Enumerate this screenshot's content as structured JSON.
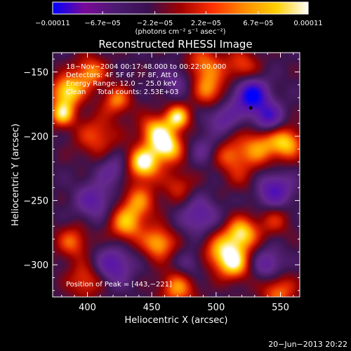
{
  "chart_data": {
    "type": "heatmap",
    "title": "Reconstructed RHESSI Image",
    "xlabel": "Heliocentric X (arcsec)",
    "ylabel": "Heliocentric Y (arcsec)",
    "xlim": [
      373,
      565
    ],
    "ylim": [
      -325,
      -135
    ],
    "x_ticks": [
      400,
      450,
      500,
      550
    ],
    "y_ticks": [
      -150,
      -200,
      -250,
      -300
    ],
    "x_tick_labels": [
      "400",
      "450",
      "500",
      "550"
    ],
    "y_tick_labels": [
      "−150",
      "−200",
      "−250",
      "−300"
    ],
    "colorbar": {
      "min": -0.00011,
      "max": 0.00011,
      "tick_values": [
        -0.00011,
        -6.7e-05,
        -2.2e-05,
        2.2e-05,
        6.7e-05,
        0.00011
      ],
      "tick_labels": [
        "−0.00011",
        "−6.7e−05",
        "−2.2e−05",
        "2.2e−05",
        "6.7e−05",
        "0.00011"
      ],
      "unit_label": "(photons cm⁻² s⁻¹ asec⁻²)",
      "colors": [
        "#0000ff",
        "#7a0a98",
        "#4a1a70",
        "#3a1050",
        "#a00000",
        "#ff3000",
        "#ff8c00",
        "#ffd000",
        "#ffffff"
      ]
    },
    "annotations": [
      "18−Nov−2004 00:17:48.000 to 00:22:00.000",
      "Detectors: 4F 5F 6F 7F 8F, Att 0",
      "Energy Range: 12.0 − 25.0 keV",
      "Clean     Total counts: 2.53E+03"
    ],
    "peak_label": "Position of Peak = [443,−221]",
    "peak": {
      "x": 443,
      "y": -221
    },
    "marker": {
      "x": 527,
      "y": -178
    },
    "blobs": [
      {
        "x": 443,
        "y": -221,
        "a": 1.0,
        "s": 9
      },
      {
        "x": 462,
        "y": -208,
        "a": 0.9,
        "s": 9
      },
      {
        "x": 470,
        "y": -185,
        "a": 0.85,
        "s": 7
      },
      {
        "x": 452,
        "y": -195,
        "a": 0.7,
        "s": 9
      },
      {
        "x": 384,
        "y": -165,
        "a": 0.9,
        "s": 9
      },
      {
        "x": 380,
        "y": -183,
        "a": 0.75,
        "s": 7
      },
      {
        "x": 402,
        "y": -150,
        "a": 0.65,
        "s": 9
      },
      {
        "x": 423,
        "y": -172,
        "a": 0.6,
        "s": 8
      },
      {
        "x": 407,
        "y": -200,
        "a": 0.5,
        "s": 12
      },
      {
        "x": 490,
        "y": -145,
        "a": 0.6,
        "s": 11
      },
      {
        "x": 520,
        "y": -145,
        "a": 0.5,
        "s": 9
      },
      {
        "x": 495,
        "y": -165,
        "a": 0.55,
        "s": 9
      },
      {
        "x": 533,
        "y": -208,
        "a": 0.65,
        "s": 11
      },
      {
        "x": 555,
        "y": -205,
        "a": 0.75,
        "s": 9
      },
      {
        "x": 510,
        "y": -215,
        "a": 0.5,
        "s": 9
      },
      {
        "x": 440,
        "y": -250,
        "a": 0.55,
        "s": 10
      },
      {
        "x": 470,
        "y": -238,
        "a": 0.4,
        "s": 9
      },
      {
        "x": 430,
        "y": -268,
        "a": 0.7,
        "s": 10
      },
      {
        "x": 455,
        "y": -283,
        "a": 0.75,
        "s": 9
      },
      {
        "x": 388,
        "y": -282,
        "a": 0.55,
        "s": 9
      },
      {
        "x": 398,
        "y": -312,
        "a": 0.5,
        "s": 10
      },
      {
        "x": 470,
        "y": -318,
        "a": 0.65,
        "s": 10
      },
      {
        "x": 505,
        "y": -290,
        "a": 0.75,
        "s": 11
      },
      {
        "x": 520,
        "y": -275,
        "a": 0.8,
        "s": 9
      },
      {
        "x": 515,
        "y": -300,
        "a": 0.6,
        "s": 9
      },
      {
        "x": 545,
        "y": -265,
        "a": 0.4,
        "s": 9
      },
      {
        "x": 548,
        "y": -320,
        "a": 0.6,
        "s": 10
      },
      {
        "x": 520,
        "y": -232,
        "a": 0.25,
        "s": 9
      },
      {
        "x": 527,
        "y": -168,
        "a": -1.0,
        "s": 9
      },
      {
        "x": 540,
        "y": -185,
        "a": -0.7,
        "s": 8
      },
      {
        "x": 505,
        "y": -185,
        "a": -0.45,
        "s": 9
      },
      {
        "x": 420,
        "y": -300,
        "a": -0.6,
        "s": 10
      },
      {
        "x": 405,
        "y": -250,
        "a": -0.5,
        "s": 10
      },
      {
        "x": 487,
        "y": -262,
        "a": -0.5,
        "s": 10
      },
      {
        "x": 545,
        "y": -242,
        "a": -0.65,
        "s": 10
      },
      {
        "x": 540,
        "y": -300,
        "a": -0.5,
        "s": 9
      },
      {
        "x": 480,
        "y": -300,
        "a": -0.3,
        "s": 8
      },
      {
        "x": 470,
        "y": -155,
        "a": -0.35,
        "s": 9
      },
      {
        "x": 420,
        "y": -225,
        "a": -0.4,
        "s": 9
      },
      {
        "x": 490,
        "y": -210,
        "a": -0.3,
        "s": 8
      }
    ]
  },
  "footer": {
    "date": "20−Jun−2013 20:22"
  }
}
